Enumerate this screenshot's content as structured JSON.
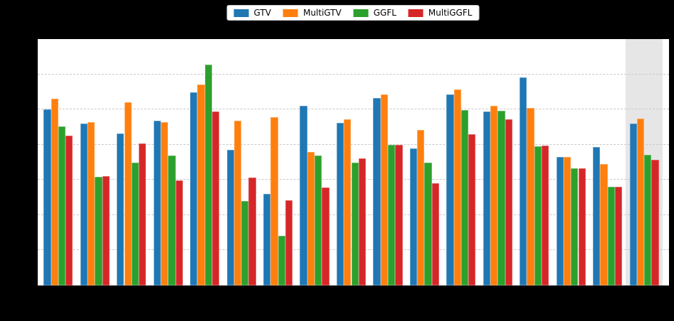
{
  "chart_data": {
    "type": "bar",
    "legend_position": "top-center",
    "grid": "horizontal-dashed",
    "axis_tick_labels_visible": false,
    "n_groups": 17,
    "highlighted_group_index": 16,
    "highlight_color": "#e6e6e6",
    "plot_background": "#ffffff",
    "figure_background": "#000000",
    "ylim": [
      0,
      7
    ],
    "ytick_step": 1,
    "series": [
      {
        "name": "GTV",
        "color": "#1f77b4",
        "values": [
          5.01,
          4.59,
          4.32,
          4.69,
          5.49,
          3.85,
          2.61,
          5.1,
          4.62,
          5.33,
          3.9,
          5.43,
          4.94,
          5.91,
          3.66,
          3.94,
          4.6
        ]
      },
      {
        "name": "MultiGTV",
        "color": "#ff7f0e",
        "values": [
          5.3,
          4.64,
          5.21,
          4.65,
          5.7,
          4.69,
          4.78,
          3.8,
          4.73,
          5.42,
          4.41,
          5.57,
          5.1,
          5.04,
          3.66,
          3.44,
          4.75
        ]
      },
      {
        "name": "GGFL",
        "color": "#2ca02c",
        "values": [
          4.52,
          3.09,
          3.5,
          3.69,
          6.28,
          2.41,
          1.42,
          3.7,
          3.5,
          3.99,
          3.5,
          4.98,
          4.97,
          3.96,
          3.33,
          2.81,
          3.72
        ]
      },
      {
        "name": "MultiGGFL",
        "color": "#d62728",
        "values": [
          4.25,
          3.11,
          4.03,
          2.98,
          4.94,
          3.06,
          2.43,
          2.78,
          3.62,
          3.99,
          2.91,
          4.3,
          4.72,
          3.98,
          3.33,
          2.81,
          3.57
        ]
      }
    ]
  }
}
